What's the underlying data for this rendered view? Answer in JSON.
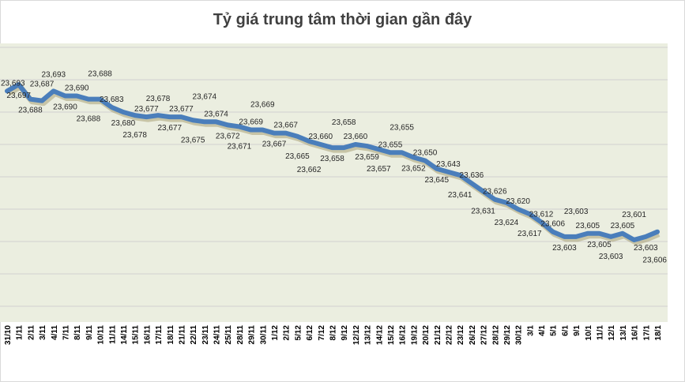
{
  "chart_data": {
    "type": "line",
    "title": "Tỷ giá trung tâm thời gian gần đây",
    "xlabel": "",
    "ylabel": "",
    "ylim": [
      23550,
      23725
    ],
    "grid": true,
    "legend": "none",
    "line_color": "#4a7ebb",
    "plot_background": "#ebeee0",
    "categories": [
      "31/10",
      "1/11",
      "2/11",
      "3/11",
      "4/11",
      "7/11",
      "8/11",
      "9/11",
      "10/11",
      "11/11",
      "14/11",
      "15/11",
      "16/11",
      "17/11",
      "18/11",
      "21/11",
      "22/11",
      "23/11",
      "24/11",
      "25/11",
      "28/11",
      "29/11",
      "30/11",
      "1/12",
      "2/12",
      "5/12",
      "6/12",
      "7/12",
      "8/12",
      "9/12",
      "12/12",
      "13/12",
      "14/12",
      "15/12",
      "16/12",
      "19/12",
      "20/12",
      "21/12",
      "22/12",
      "23/12",
      "26/12",
      "27/12",
      "28/12",
      "29/12",
      "30/12",
      "3/1",
      "4/1",
      "5/1",
      "6/1",
      "9/1",
      "10/1",
      "11/1",
      "12/1",
      "13/1",
      "16/1",
      "17/1",
      "18/1"
    ],
    "values": [
      23693,
      23697,
      23688,
      23687,
      23693,
      23690,
      23690,
      23688,
      23688,
      23683,
      23680,
      23678,
      23677,
      23678,
      23677,
      23677,
      23675,
      23674,
      23674,
      23672,
      23671,
      23669,
      23669,
      23667,
      23667,
      23665,
      23662,
      23660,
      23658,
      23658,
      23660,
      23659,
      23657,
      23655,
      23655,
      23652,
      23650,
      23645,
      23643,
      23641,
      23636,
      23631,
      23626,
      23624,
      23620,
      23617,
      23612,
      23606,
      23603,
      23603,
      23605,
      23605,
      23603,
      23605,
      23601,
      23603,
      23606
    ]
  }
}
